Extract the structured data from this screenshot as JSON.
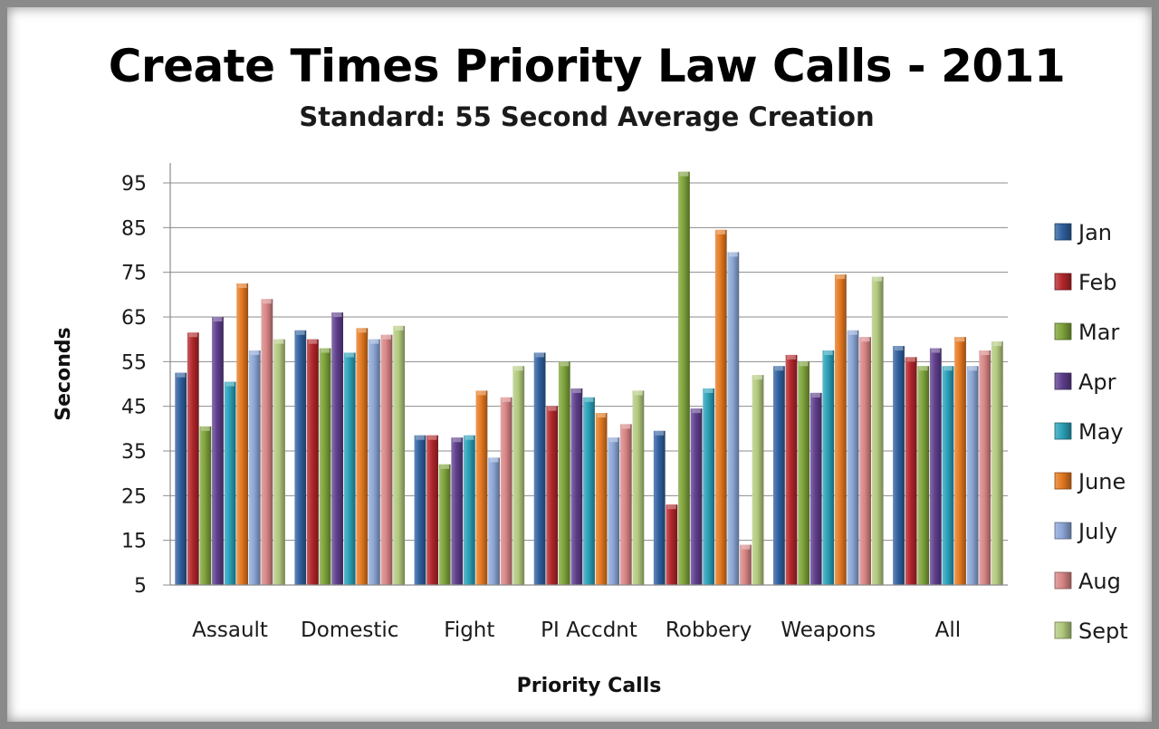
{
  "chart_data": {
    "type": "bar",
    "title": "Create Times Priority Law Calls - 2011",
    "subtitle": "Standard: 55 Second Average Creation",
    "xlabel": "Priority Calls",
    "ylabel": "Seconds",
    "ylim": [
      5,
      100
    ],
    "yticks": [
      5,
      15,
      25,
      35,
      45,
      55,
      65,
      75,
      85,
      95
    ],
    "grid": true,
    "legend_position": "right",
    "categories": [
      "Assault",
      "Domestic",
      "Fight",
      "PI Accdnt",
      "Robbery",
      "Weapons",
      "All"
    ],
    "series": [
      {
        "name": "Jan",
        "color": "#2f5f9e",
        "values": [
          52.5,
          62,
          38.5,
          57,
          39.5,
          54,
          58.5
        ]
      },
      {
        "name": "Feb",
        "color": "#b3262b",
        "values": [
          61.5,
          60,
          38.5,
          45,
          23,
          56.5,
          56
        ]
      },
      {
        "name": "Mar",
        "color": "#7ea33a",
        "values": [
          40.5,
          58,
          32,
          55,
          97.5,
          55,
          54
        ]
      },
      {
        "name": "Apr",
        "color": "#5e3e8c",
        "values": [
          65,
          66,
          38,
          49,
          44.5,
          48,
          58
        ]
      },
      {
        "name": "May",
        "color": "#2aa0b8",
        "values": [
          50.5,
          57,
          38.5,
          47,
          49,
          57.5,
          54
        ]
      },
      {
        "name": "June",
        "color": "#e47820",
        "values": [
          72.5,
          62.5,
          48.5,
          43.5,
          84.5,
          74.5,
          60.5
        ]
      },
      {
        "name": "July",
        "color": "#8ba6d6",
        "values": [
          57.5,
          60,
          33.5,
          38,
          79.5,
          62,
          54
        ]
      },
      {
        "name": "Aug",
        "color": "#d88585",
        "values": [
          69,
          61,
          47,
          41,
          14,
          60.5,
          57.5
        ]
      },
      {
        "name": "Sept",
        "color": "#b2c97d",
        "values": [
          60,
          63,
          54,
          48.5,
          52,
          74,
          59.5
        ]
      }
    ]
  }
}
